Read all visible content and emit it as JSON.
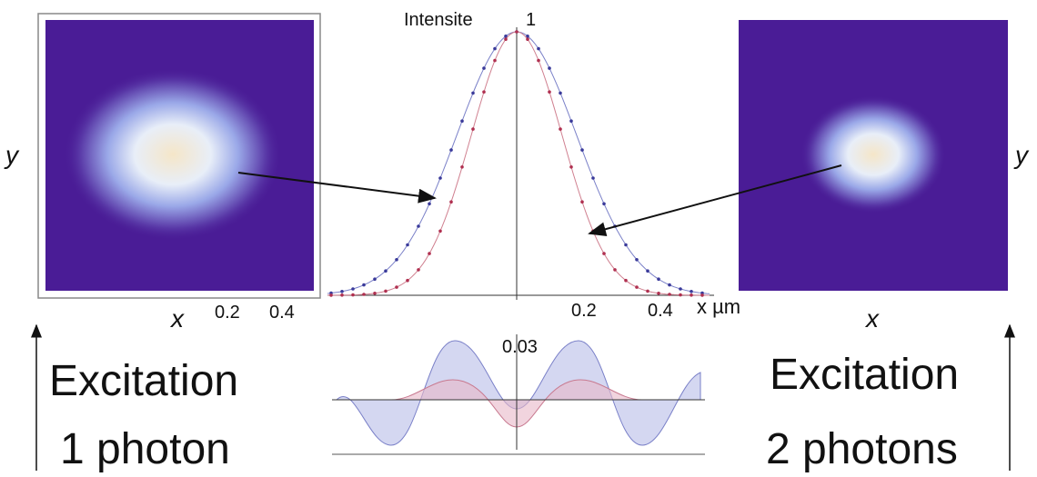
{
  "figure": {
    "center_plot": {
      "y_label": "Intensite",
      "y_tick": "1",
      "x_ticks": [
        "0.2",
        "0.4"
      ],
      "x_label": "x µm"
    },
    "left_image": {
      "y_label": "y",
      "x_label": "x",
      "x_ticks": [
        "0.2",
        "0.4"
      ]
    },
    "right_image": {
      "y_label": "y",
      "x_label": "x"
    },
    "difference_plot": {
      "y_tick": "0.03"
    },
    "left_caption": {
      "line1": "Excitation",
      "line2": "1 photon"
    },
    "right_caption": {
      "line1": "Excitation",
      "line2": "2 photons"
    }
  }
}
